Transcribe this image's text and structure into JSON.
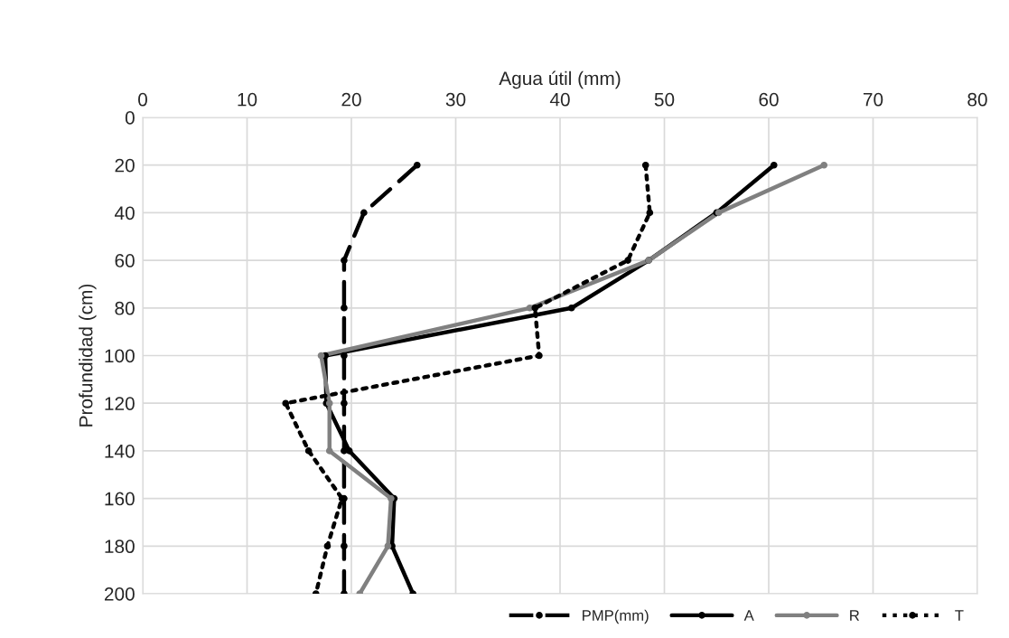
{
  "chart_data": {
    "type": "line",
    "xlabel": "Agua útil (mm)",
    "ylabel": "Profundidad (cm)",
    "xlim": [
      0,
      80
    ],
    "xticks": [
      0,
      10,
      20,
      30,
      40,
      50,
      60,
      70,
      80
    ],
    "ylim": [
      200,
      0
    ],
    "yticks": [
      0,
      20,
      40,
      60,
      80,
      100,
      120,
      140,
      160,
      180,
      200
    ],
    "grid": true,
    "legend": "bottom right",
    "marker": "circle",
    "series": [
      {
        "name": "PMP(mm)",
        "color": "#000000",
        "line_style": "dashed",
        "x": [
          26.3,
          21.2,
          19.3,
          19.3,
          19.3,
          19.3,
          19.3,
          19.3,
          19.3,
          19.3
        ],
        "values": [
          20,
          40,
          60,
          80,
          100,
          120,
          140,
          160,
          180,
          200
        ]
      },
      {
        "name": "A",
        "color": "#000000",
        "line_style": "solid",
        "x": [
          60.5,
          55.0,
          48.5,
          41.1,
          17.5,
          17.6,
          19.8,
          24.1,
          23.9,
          25.9
        ],
        "values": [
          20,
          40,
          60,
          80,
          100,
          120,
          140,
          160,
          180,
          200
        ]
      },
      {
        "name": "R",
        "color": "#808080",
        "line_style": "solid",
        "x": [
          65.3,
          55.2,
          48.5,
          37.1,
          17.1,
          17.9,
          17.9,
          23.8,
          23.5,
          20.8
        ],
        "values": [
          20,
          40,
          60,
          80,
          100,
          120,
          140,
          160,
          180,
          200
        ]
      },
      {
        "name": "T",
        "color": "#000000",
        "line_style": "dotted",
        "x": [
          48.2,
          48.6,
          46.5,
          37.6,
          38.0,
          13.7,
          15.9,
          19.1,
          17.7,
          16.6
        ],
        "values": [
          20,
          40,
          60,
          80,
          100,
          120,
          140,
          160,
          180,
          200
        ]
      }
    ]
  }
}
